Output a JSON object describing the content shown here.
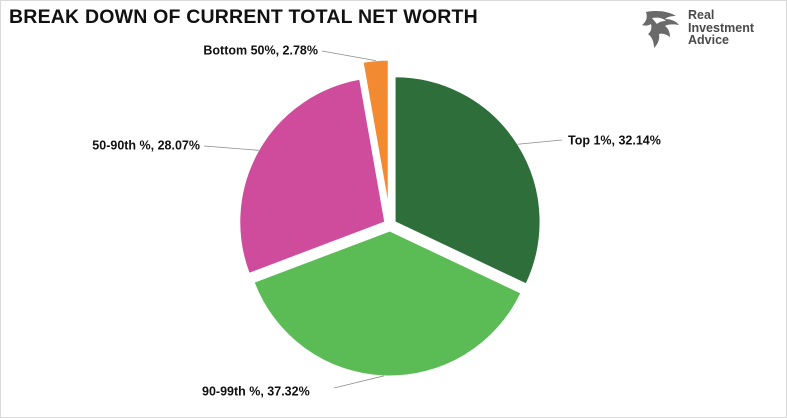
{
  "title": "BREAK DOWN OF CURRENT TOTAL NET WORTH",
  "logo": {
    "icon": "eagle-head-icon",
    "line1": "Real",
    "line2": "Investment",
    "line3": "Advice"
  },
  "chart_data": {
    "type": "pie",
    "title": "BREAK DOWN OF CURRENT TOTAL NET WORTH",
    "categories": [
      "Top 1%",
      "90-99th %",
      "50-90th %",
      "Bottom 50%"
    ],
    "values": [
      32.14,
      37.32,
      28.07,
      2.78
    ],
    "labels": [
      "Top 1%, 32.14%",
      "90-99th %, 37.32%",
      "50-90th %, 28.07%",
      "Bottom 50%, 2.78%"
    ],
    "colors": [
      "#2d6e3a",
      "#5bbb55",
      "#cf4c9c",
      "#f28a32"
    ],
    "start_angle_deg": 0,
    "exploded": true,
    "legend": "none"
  }
}
